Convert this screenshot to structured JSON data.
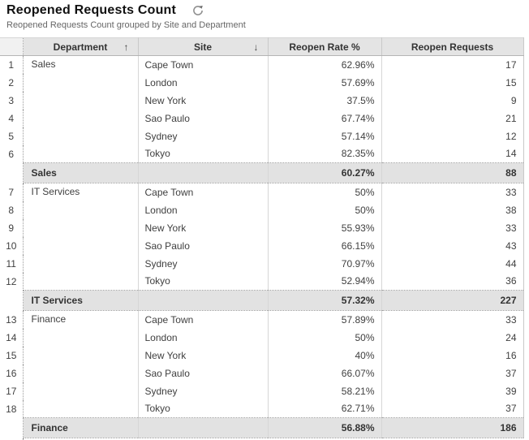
{
  "header": {
    "title": "Reopened Requests Count",
    "subtitle": "Reopened Requests Count grouped by Site and Department"
  },
  "icons": {
    "refresh": "refresh-circular-arrow",
    "sort_asc_glyph": "↑",
    "sort_desc_glyph": "↓"
  },
  "colors": {
    "header_bg": "#e4e4e4",
    "row_number_header_bg": "#f1f1f1",
    "summary_row_bg": "#e2e2e2",
    "title_text": "#111111",
    "subtitle_text": "#666666",
    "body_text": "#404040"
  },
  "table": {
    "columns": [
      {
        "label": "",
        "sort": null
      },
      {
        "label": "Department",
        "sort": "asc"
      },
      {
        "label": "Site",
        "sort": "desc"
      },
      {
        "label": "Reopen Rate %",
        "sort": null
      },
      {
        "label": "Reopen Requests",
        "sort": null
      }
    ],
    "groups": [
      {
        "department": "Sales",
        "rows": [
          {
            "num": 1,
            "site": "Cape Town",
            "rate": "62.96%",
            "requests": 17
          },
          {
            "num": 2,
            "site": "London",
            "rate": "57.69%",
            "requests": 15
          },
          {
            "num": 3,
            "site": "New York",
            "rate": "37.5%",
            "requests": 9
          },
          {
            "num": 4,
            "site": "Sao Paulo",
            "rate": "67.74%",
            "requests": 21
          },
          {
            "num": 5,
            "site": "Sydney",
            "rate": "57.14%",
            "requests": 12
          },
          {
            "num": 6,
            "site": "Tokyo",
            "rate": "82.35%",
            "requests": 14
          }
        ],
        "summary": {
          "label": "Sales",
          "rate": "60.27%",
          "requests": 88
        }
      },
      {
        "department": "IT Services",
        "rows": [
          {
            "num": 7,
            "site": "Cape Town",
            "rate": "50%",
            "requests": 33
          },
          {
            "num": 8,
            "site": "London",
            "rate": "50%",
            "requests": 38
          },
          {
            "num": 9,
            "site": "New York",
            "rate": "55.93%",
            "requests": 33
          },
          {
            "num": 10,
            "site": "Sao Paulo",
            "rate": "66.15%",
            "requests": 43
          },
          {
            "num": 11,
            "site": "Sydney",
            "rate": "70.97%",
            "requests": 44
          },
          {
            "num": 12,
            "site": "Tokyo",
            "rate": "52.94%",
            "requests": 36
          }
        ],
        "summary": {
          "label": "IT Services",
          "rate": "57.32%",
          "requests": 227
        }
      },
      {
        "department": "Finance",
        "rows": [
          {
            "num": 13,
            "site": "Cape Town",
            "rate": "57.89%",
            "requests": 33
          },
          {
            "num": 14,
            "site": "London",
            "rate": "50%",
            "requests": 24
          },
          {
            "num": 15,
            "site": "New York",
            "rate": "40%",
            "requests": 16
          },
          {
            "num": 16,
            "site": "Sao Paulo",
            "rate": "66.07%",
            "requests": 37
          },
          {
            "num": 17,
            "site": "Sydney",
            "rate": "58.21%",
            "requests": 39
          },
          {
            "num": 18,
            "site": "Tokyo",
            "rate": "62.71%",
            "requests": 37
          }
        ],
        "summary": {
          "label": "Finance",
          "rate": "56.88%",
          "requests": 186
        }
      }
    ]
  }
}
